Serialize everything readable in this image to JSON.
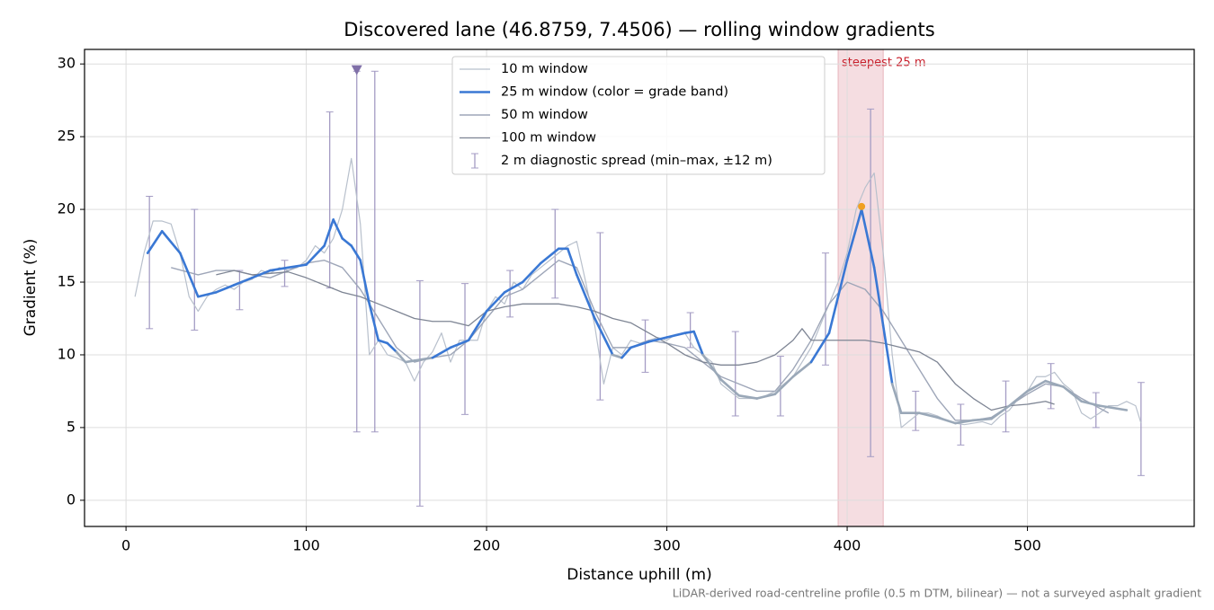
{
  "chart_data": {
    "type": "line",
    "title": "Discovered lane (46.8759, 7.4506) — rolling window gradients",
    "x_label": "Distance uphill (m)",
    "y_label": "Gradient (%)",
    "footnote": "LiDAR-derived road-centreline profile (0.5 m DTM, bilinear) — not a surveyed asphalt gradient",
    "xlim": [
      -23,
      592.5
    ],
    "ylim": [
      -1.8,
      31
    ],
    "xticks": [
      0,
      100,
      200,
      300,
      400,
      500
    ],
    "yticks": [
      0,
      5,
      10,
      15,
      20,
      25,
      30
    ],
    "grid": true,
    "legend": "upper center",
    "series": [
      {
        "name": "10 m window",
        "color": "#b8c0cc",
        "width": 1.2,
        "x": [
          5,
          10,
          15,
          20,
          25,
          30,
          35,
          40,
          45,
          50,
          55,
          60,
          65,
          70,
          75,
          80,
          85,
          90,
          95,
          100,
          105,
          110,
          115,
          120,
          125,
          130,
          135,
          140,
          145,
          150,
          155,
          160,
          165,
          170,
          175,
          180,
          185,
          190,
          195,
          200,
          205,
          210,
          215,
          220,
          225,
          230,
          235,
          240,
          245,
          250,
          255,
          260,
          265,
          270,
          275,
          280,
          285,
          290,
          295,
          300,
          305,
          310,
          315,
          320,
          325,
          330,
          335,
          340,
          345,
          350,
          355,
          360,
          365,
          370,
          375,
          380,
          385,
          390,
          395,
          400,
          405,
          410,
          415,
          420,
          425,
          430,
          435,
          440,
          445,
          450,
          455,
          460,
          465,
          470,
          475,
          480,
          485,
          490,
          495,
          500,
          505,
          510,
          515,
          520,
          525,
          530,
          535,
          540,
          545,
          550,
          555,
          560,
          563
        ],
        "values": [
          14,
          17,
          19.2,
          19.2,
          19,
          17,
          14,
          13,
          14,
          14.5,
          14.8,
          14.5,
          15,
          15.2,
          15.8,
          15.6,
          16,
          15.8,
          16,
          16.5,
          17.5,
          17,
          18,
          20,
          23.5,
          19,
          10,
          11,
          10,
          9.8,
          9.5,
          8.2,
          9.5,
          10.2,
          11.5,
          9.5,
          11,
          11,
          11,
          13,
          14,
          13.5,
          15,
          14.5,
          15.5,
          16,
          16.5,
          17,
          17.5,
          17.8,
          15,
          12,
          8,
          10.5,
          10,
          11,
          10.8,
          11,
          11.2,
          11,
          11.4,
          11.5,
          10.5,
          10,
          9.5,
          8,
          7.5,
          7,
          7,
          7,
          7.2,
          7.5,
          8,
          8.5,
          9.5,
          10.5,
          12,
          13.5,
          15,
          17,
          20,
          21.5,
          22.5,
          17,
          10,
          5,
          5.5,
          6,
          6,
          5.8,
          5.5,
          5.3,
          5.2,
          5.3,
          5.4,
          5.2,
          5.8,
          6.2,
          7,
          7.5,
          8.5,
          8.5,
          8.8,
          8,
          7.5,
          6,
          5.6,
          6,
          6.5,
          6.5,
          6.8,
          6.5,
          5.3
        ]
      },
      {
        "name": "25 m window (color = grade band)",
        "color": "#3a78d4",
        "band_threshold": 10,
        "band_low_color": "#9aa8b8",
        "width": 2.6,
        "x": [
          12,
          20,
          30,
          40,
          50,
          60,
          70,
          80,
          90,
          100,
          110,
          115,
          120,
          125,
          130,
          135,
          140,
          145,
          150,
          155,
          160,
          170,
          180,
          190,
          200,
          210,
          220,
          230,
          240,
          245,
          250,
          260,
          270,
          275,
          280,
          290,
          300,
          310,
          315,
          320,
          330,
          340,
          350,
          360,
          370,
          380,
          390,
          400,
          408,
          415,
          420,
          425,
          430,
          440,
          450,
          460,
          470,
          480,
          490,
          500,
          510,
          520,
          530,
          540,
          555
        ],
        "values": [
          17,
          18.5,
          17,
          14,
          14.3,
          14.8,
          15.3,
          15.8,
          16,
          16.2,
          17.5,
          19.3,
          18,
          17.5,
          16.5,
          13.5,
          11,
          10.8,
          10.2,
          9.5,
          9.6,
          9.8,
          10.5,
          11,
          13,
          14.3,
          15,
          16.3,
          17.3,
          17.3,
          15.5,
          12.5,
          10,
          9.8,
          10.5,
          10.9,
          11.2,
          11.5,
          11.6,
          10,
          8.3,
          7.2,
          7,
          7.3,
          8.5,
          9.5,
          11.5,
          16.5,
          20,
          16,
          12,
          8,
          6,
          6,
          5.7,
          5.3,
          5.5,
          5.6,
          6.5,
          7.5,
          8.2,
          7.8,
          6.8,
          6.5,
          6.2
        ]
      },
      {
        "name": "50 m window",
        "color": "#9ea6b8",
        "width": 1.4,
        "x": [
          25,
          40,
          50,
          60,
          70,
          80,
          90,
          100,
          110,
          120,
          130,
          140,
          150,
          160,
          170,
          180,
          190,
          200,
          210,
          220,
          230,
          240,
          250,
          260,
          270,
          280,
          290,
          300,
          310,
          320,
          330,
          340,
          350,
          360,
          370,
          380,
          390,
          400,
          410,
          420,
          430,
          440,
          450,
          460,
          470,
          480,
          490,
          500,
          510,
          520,
          530,
          545
        ],
        "values": [
          16,
          15.5,
          15.8,
          15.8,
          15.5,
          15.3,
          15.8,
          16.3,
          16.5,
          16,
          14.5,
          12.5,
          10.5,
          9.5,
          9.8,
          10,
          11,
          12.5,
          14,
          14.5,
          15.5,
          16.5,
          16,
          13,
          10.5,
          10.5,
          11,
          10.8,
          10.5,
          9.5,
          8.5,
          8,
          7.5,
          7.5,
          9,
          11,
          13.5,
          15,
          14.5,
          13,
          11,
          9,
          7,
          5.5,
          5.5,
          5.7,
          6.5,
          7.3,
          8,
          7.8,
          7,
          6
        ]
      },
      {
        "name": "100 m window",
        "color": "#7e8594",
        "width": 1.3,
        "x": [
          50,
          60,
          70,
          80,
          90,
          100,
          110,
          120,
          130,
          140,
          150,
          160,
          170,
          180,
          190,
          200,
          210,
          220,
          230,
          240,
          250,
          260,
          270,
          280,
          290,
          300,
          310,
          320,
          330,
          340,
          350,
          360,
          370,
          375,
          380,
          390,
          400,
          410,
          420,
          430,
          440,
          450,
          460,
          470,
          480,
          490,
          500,
          510,
          515
        ],
        "values": [
          15.5,
          15.8,
          15.5,
          15.6,
          15.7,
          15.3,
          14.8,
          14.3,
          14,
          13.5,
          13,
          12.5,
          12.3,
          12.3,
          12,
          13,
          13.3,
          13.5,
          13.5,
          13.5,
          13.3,
          13,
          12.5,
          12.2,
          11.5,
          10.8,
          10,
          9.5,
          9.3,
          9.3,
          9.5,
          10,
          11,
          11.8,
          11,
          11,
          11,
          11,
          10.8,
          10.5,
          10.2,
          9.5,
          8,
          7,
          6.2,
          6.5,
          6.6,
          6.8,
          6.6
        ]
      }
    ],
    "errorbars": {
      "name": "2 m diagnostic spread (min–max, ±12 m)",
      "color": "#a49cc4",
      "x": [
        13,
        38,
        63,
        88,
        113,
        128,
        138,
        163,
        188,
        213,
        238,
        263,
        288,
        313,
        338,
        363,
        388,
        413,
        438,
        463,
        488,
        513,
        538,
        563
      ],
      "min": [
        11.8,
        11.7,
        13.1,
        14.7,
        14.6,
        4.7,
        4.7,
        -0.4,
        5.9,
        12.6,
        13.9,
        6.9,
        8.8,
        10.5,
        5.8,
        5.8,
        9.3,
        3.0,
        4.8,
        3.8,
        4.7,
        6.3,
        5.0,
        1.7
      ],
      "max": [
        20.9,
        20.0,
        15.8,
        16.5,
        26.7,
        29.5,
        29.5,
        15.1,
        14.9,
        15.8,
        20.0,
        18.4,
        12.4,
        12.9,
        11.6,
        9.9,
        17.0,
        26.9,
        7.5,
        6.6,
        8.2,
        9.4,
        7.4,
        8.1
      ]
    },
    "clip_marker": {
      "x": 128,
      "y": 29.6,
      "color": "#8070a8"
    },
    "steepest": {
      "label": "steepest 25 m",
      "x0": 395,
      "x1": 420,
      "color": "#e8b4bc",
      "label_color": "#c8202c"
    },
    "peak": {
      "x": 408,
      "y": 20.2,
      "color": "#f0a020"
    }
  }
}
